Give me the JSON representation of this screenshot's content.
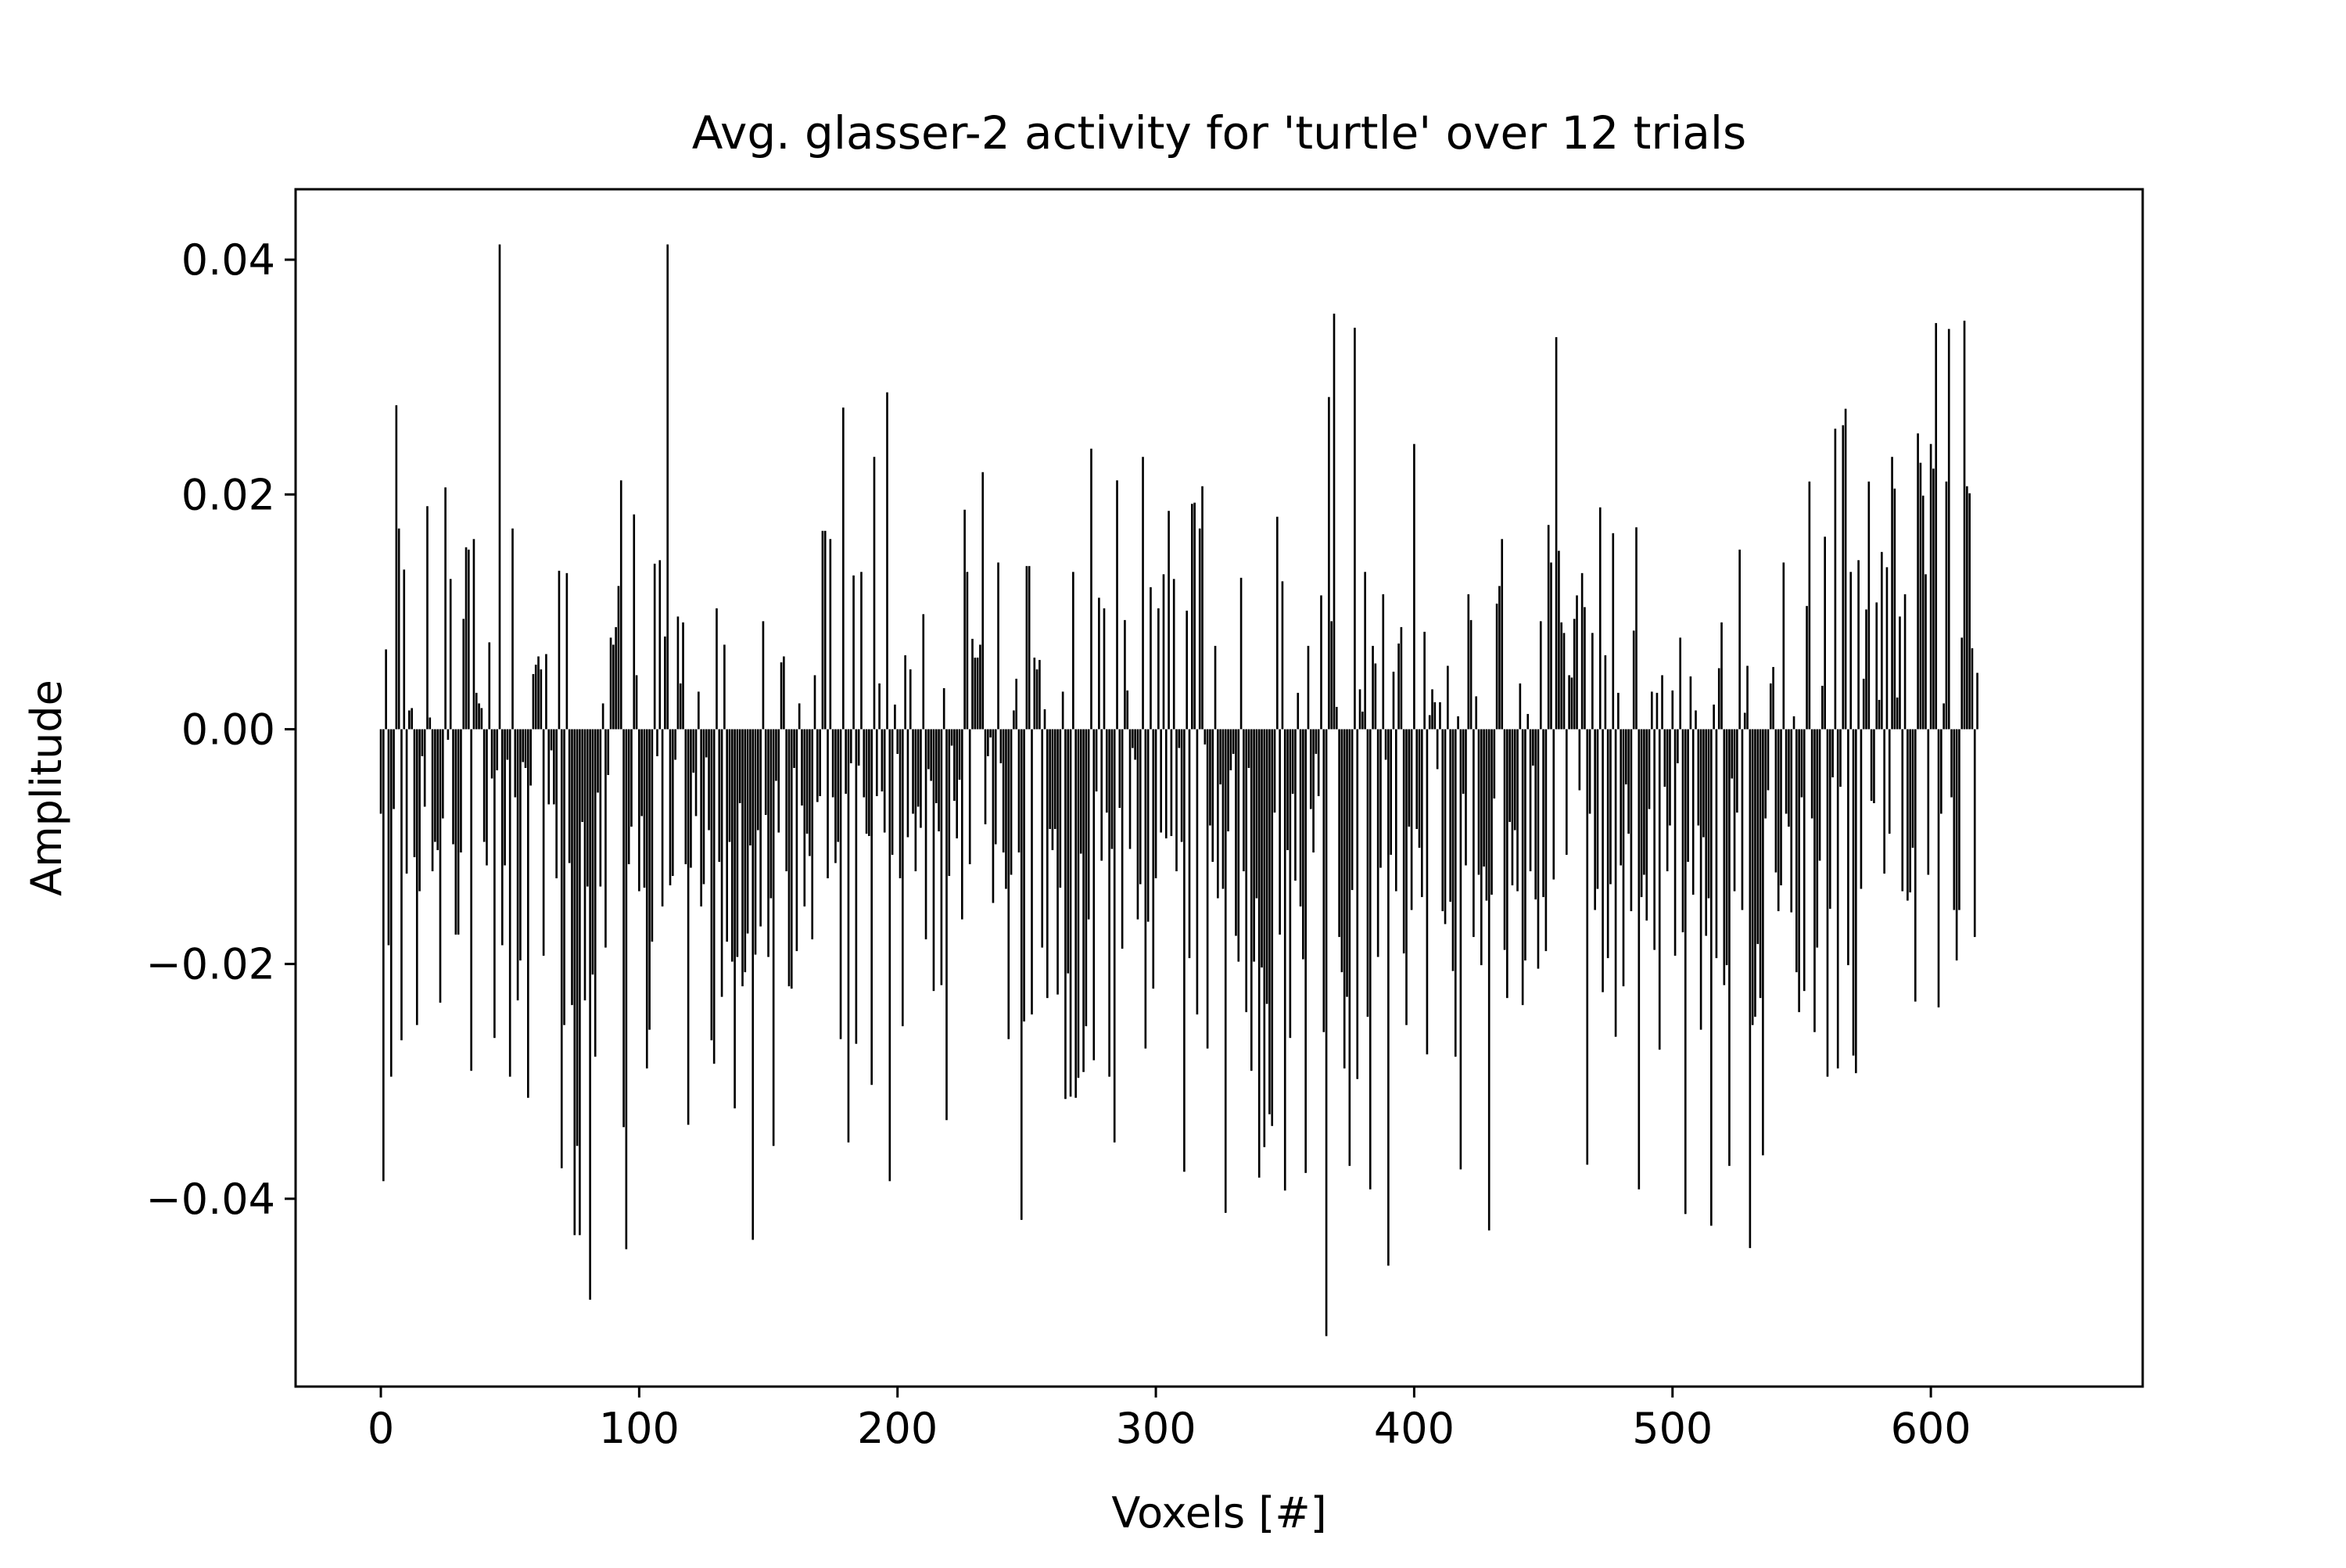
{
  "chart_data": {
    "type": "bar",
    "title": "Avg. glasser-2 activity for 'turtle' over 12 trials",
    "xlabel": "Voxels [#]",
    "ylabel": "Amplitude",
    "xlim": [
      -33,
      682
    ],
    "ylim": [
      -0.056,
      0.046
    ],
    "x_ticks": [
      0,
      100,
      200,
      300,
      400,
      500,
      600
    ],
    "x_tick_labels": [
      "0",
      "100",
      "200",
      "300",
      "400",
      "500",
      "600"
    ],
    "y_ticks": [
      0.04,
      0.02,
      0.0,
      -0.02,
      -0.04
    ],
    "y_tick_labels": [
      "0.04",
      "0.02",
      "0.00",
      "−0.02",
      "−0.04"
    ],
    "grid": false,
    "bar_color": "#000000",
    "n_bars": 650,
    "values": [
      -0.0072,
      -0.0385,
      0.0068,
      -0.0184,
      -0.0296,
      -0.0068,
      0.0276,
      0.0171,
      -0.0265,
      0.0136,
      -0.0123,
      0.0016,
      0.0018,
      -0.0109,
      -0.0252,
      -0.0138,
      -0.0023,
      -0.0066,
      0.019,
      0.001,
      -0.0121,
      -0.0096,
      -0.0103,
      -0.0233,
      -0.0076,
      0.0206,
      -0.0009,
      0.0128,
      -0.0098,
      -0.0175,
      -0.0175,
      -0.0105,
      0.0094,
      0.0155,
      0.0153,
      -0.0291,
      0.0162,
      0.0031,
      0.0022,
      0.0018,
      -0.0096,
      -0.0116,
      0.0074,
      -0.0042,
      -0.0263,
      -0.0035,
      0.0413,
      -0.0184,
      -0.0116,
      -0.0026,
      -0.0296,
      0.0171,
      -0.0058,
      -0.0231,
      -0.0197,
      -0.0028,
      -0.0033,
      -0.0314,
      -0.0048,
      0.0047,
      0.0055,
      0.0062,
      0.0051,
      -0.0193,
      0.0064,
      -0.0064,
      -0.0018,
      -0.0064,
      -0.0127,
      0.0135,
      -0.0374,
      -0.0252,
      0.0133,
      -0.0114,
      -0.0235,
      -0.0431,
      -0.0355,
      -0.0431,
      -0.0079,
      -0.0231,
      -0.0134,
      -0.0486,
      -0.0209,
      -0.0279,
      -0.0054,
      -0.0134,
      0.0022,
      -0.0186,
      -0.0039,
      0.0078,
      0.0072,
      0.0087,
      0.0122,
      0.0212,
      -0.0339,
      -0.0443,
      -0.0115,
      -0.0083,
      0.0183,
      0.0046,
      -0.0138,
      -0.0074,
      -0.0135,
      -0.0289,
      -0.0256,
      -0.0181,
      0.0141,
      -0.0023,
      0.0144,
      -0.0151,
      0.0079,
      0.0413,
      -0.0133,
      -0.0125,
      -0.0026,
      0.0096,
      0.0039,
      0.0091,
      -0.0115,
      -0.0337,
      -0.0118,
      -0.0037,
      -0.0074,
      0.0032,
      -0.0151,
      -0.0132,
      -0.0024,
      -0.0086,
      -0.0265,
      -0.0285,
      0.0103,
      -0.0113,
      -0.0228,
      0.0072,
      -0.0181,
      -0.0096,
      -0.0198,
      -0.0323,
      -0.0194,
      -0.0063,
      -0.0219,
      -0.0207,
      -0.0174,
      -0.0099,
      -0.0435,
      -0.0192,
      -0.0086,
      -0.0168,
      0.0092,
      -0.0073,
      -0.0194,
      -0.0144,
      -0.0355,
      -0.0044,
      -0.0088,
      0.0057,
      0.0062,
      -0.0121,
      -0.0219,
      -0.0221,
      -0.0033,
      -0.0189,
      0.0022,
      -0.0065,
      -0.0151,
      -0.0089,
      -0.0108,
      -0.0179,
      0.0046,
      -0.0062,
      -0.0057,
      0.0169,
      0.0169,
      -0.0127,
      0.0162,
      -0.0058,
      -0.0114,
      -0.0096,
      -0.0264,
      0.0274,
      -0.0055,
      -0.0352,
      -0.0029,
      0.0131,
      -0.0268,
      -0.0031,
      0.0134,
      -0.0058,
      -0.0089,
      -0.0091,
      -0.0303,
      0.0232,
      -0.0057,
      0.0039,
      -0.0053,
      -0.0088,
      0.0287,
      -0.0385,
      -0.0107,
      0.0021,
      -0.0021,
      -0.0127,
      -0.0253,
      0.0063,
      -0.0092,
      0.0051,
      -0.0072,
      -0.0121,
      -0.0066,
      -0.0084,
      0.0098,
      -0.0179,
      -0.0034,
      -0.0044,
      -0.0223,
      -0.0063,
      -0.0087,
      -0.0218,
      0.0035,
      -0.0333,
      -0.0125,
      -0.0014,
      -0.0061,
      -0.0093,
      -0.0043,
      -0.0162,
      0.0187,
      0.0134,
      -0.0115,
      0.0077,
      0.0061,
      0.0061,
      0.0072,
      0.0219,
      -0.0081,
      -0.0023,
      -0.0007,
      -0.0148,
      -0.0098,
      0.0142,
      -0.0029,
      -0.0105,
      -0.0136,
      -0.0264,
      -0.0124,
      0.0016,
      0.0043,
      -0.0105,
      -0.0418,
      -0.0249,
      0.0139,
      0.0139,
      -0.0243,
      0.0061,
      0.0051,
      0.0059,
      -0.0186,
      0.0017,
      -0.0229,
      -0.0085,
      -0.0103,
      -0.0085,
      -0.0226,
      -0.0135,
      0.0032,
      -0.0315,
      -0.0208,
      -0.0313,
      0.0134,
      -0.0314,
      -0.0297,
      -0.0106,
      -0.0292,
      -0.0253,
      -0.0162,
      0.0239,
      -0.0282,
      -0.0053,
      0.0112,
      -0.0112,
      0.0103,
      -0.0071,
      -0.0296,
      -0.0102,
      -0.0352,
      0.0212,
      -0.0067,
      -0.0187,
      0.0093,
      0.0033,
      -0.0102,
      -0.0016,
      -0.0026,
      -0.0162,
      -0.0132,
      0.0232,
      -0.0272,
      -0.0164,
      0.0121,
      -0.0221,
      -0.0127,
      0.0103,
      -0.0088,
      0.0132,
      -0.0093,
      0.0186,
      -0.0091,
      0.0128,
      -0.0121,
      -0.0016,
      -0.0096,
      -0.0377,
      0.0101,
      -0.0195,
      0.0192,
      0.0193,
      -0.0243,
      0.0171,
      0.0207,
      -0.0013,
      -0.0272,
      -0.0082,
      -0.0113,
      0.0071,
      -0.0144,
      -0.0047,
      -0.0136,
      -0.0412,
      -0.0087,
      -0.0035,
      -0.0021,
      -0.0176,
      -0.0198,
      0.0129,
      -0.0121,
      -0.0241,
      -0.0033,
      -0.0291,
      -0.0198,
      -0.0144,
      -0.0382,
      -0.0203,
      -0.0356,
      -0.0234,
      -0.0328,
      -0.0338,
      -0.0071,
      0.0181,
      -0.0175,
      0.0126,
      -0.0393,
      -0.0103,
      -0.0263,
      -0.0055,
      -0.0129,
      0.0031,
      -0.0151,
      -0.0196,
      -0.0378,
      0.0071,
      -0.0068,
      -0.0105,
      -0.0021,
      -0.0057,
      0.0114,
      -0.0258,
      -0.0517,
      0.0283,
      0.0092,
      0.0354,
      0.0019,
      -0.0177,
      -0.0207,
      -0.0289,
      -0.0228,
      -0.0372,
      -0.0137,
      0.0342,
      -0.0298,
      0.0034,
      0.0015,
      0.0134,
      -0.0245,
      -0.0392,
      0.0071,
      0.0056,
      -0.0194,
      -0.0118,
      0.0115,
      -0.0026,
      -0.0457,
      -0.0107,
      0.0049,
      -0.0138,
      0.0073,
      0.0087,
      -0.0191,
      -0.0252,
      -0.0083,
      -0.0154,
      0.0243,
      -0.0085,
      -0.0101,
      -0.0143,
      0.0083,
      -0.0277,
      0.0012,
      0.0034,
      0.0023,
      -0.0034,
      0.0023,
      -0.0155,
      -0.0166,
      0.0054,
      -0.0147,
      -0.0206,
      -0.0279,
      0.0011,
      -0.0375,
      -0.0055,
      -0.0116,
      0.0115,
      0.0093,
      -0.0177,
      0.0028,
      -0.0124,
      -0.0201,
      -0.0117,
      -0.0146,
      -0.0427,
      -0.0141,
      -0.0059,
      0.0107,
      0.0122,
      0.0162,
      -0.0188,
      -0.0229,
      -0.0079,
      -0.0133,
      -0.0086,
      -0.0138,
      0.0039,
      -0.0235,
      -0.0197,
      0.0013,
      -0.0121,
      -0.0031,
      -0.0145,
      -0.0204,
      0.0092,
      -0.0143,
      -0.0189,
      0.0174,
      0.0142,
      -0.0128,
      0.0334,
      0.0152,
      0.0091,
      0.0082,
      -0.0107,
      0.0046,
      0.0044,
      0.0094,
      0.0114,
      -0.0052,
      0.0133,
      0.0104,
      -0.0371,
      -0.0072,
      0.0082,
      -0.0154,
      -0.0136,
      0.0189,
      -0.0224,
      0.0063,
      -0.0195,
      -0.0132,
      0.0167,
      -0.0262,
      0.0031,
      -0.0116,
      -0.0219,
      -0.0047,
      -0.0089,
      -0.0155,
      0.0084,
      0.0172,
      -0.0392,
      -0.0143,
      -0.0124,
      -0.0163,
      -0.0068,
      0.0032,
      -0.0188,
      0.0031,
      -0.0273,
      0.0046,
      -0.0049,
      -0.0121,
      -0.0082,
      0.0033,
      -0.0193,
      -0.0029,
      0.0078,
      -0.0173,
      -0.0413,
      -0.0113,
      0.0045,
      -0.0141,
      0.0016,
      -0.0082,
      -0.0256,
      -0.0092,
      -0.0176,
      -0.0144,
      -0.0423,
      0.0021,
      -0.0195,
      0.0052,
      0.0091,
      -0.0218,
      -0.0201,
      -0.0372,
      -0.0042,
      -0.0138,
      -0.0071,
      0.0153,
      -0.0154,
      0.0014,
      0.0054,
      -0.0442,
      -0.0252,
      -0.0245,
      -0.0183,
      -0.0229,
      -0.0363,
      -0.0076,
      -0.0052,
      0.0039,
      0.0053,
      -0.0122,
      -0.0155,
      -0.0133,
      0.0142,
      -0.0072,
      -0.0083,
      -0.0156,
      0.0011,
      -0.0207,
      -0.0241,
      -0.0058,
      -0.0223,
      0.0105,
      0.0211,
      -0.0076,
      -0.0258,
      -0.0186,
      -0.0112,
      0.0037,
      0.0164,
      -0.0296,
      -0.0153,
      -0.0041,
      0.0256,
      -0.0289,
      -0.0049,
      0.0259,
      0.0273,
      -0.0201,
      0.0134,
      -0.0278,
      -0.0293,
      0.0144,
      -0.0136,
      0.0043,
      0.0102,
      0.0211,
      -0.0061,
      -0.0063,
      0.0108,
      0.0025,
      0.0151,
      -0.0123,
      0.0138,
      -0.0089,
      0.0232,
      0.0205,
      0.0027,
      0.0096,
      -0.0138,
      0.0115,
      -0.0146,
      -0.0139,
      -0.0101,
      -0.0232,
      0.0252,
      0.0227,
      0.0199,
      0.0132,
      -0.0124,
      0.0243,
      0.0222,
      0.0346,
      -0.0237,
      -0.0072,
      0.0022,
      0.0211,
      0.0341,
      -0.0058,
      -0.0154,
      -0.0197,
      -0.0154,
      0.0078,
      0.0348,
      0.0207,
      0.0201,
      0.0069,
      -0.0177,
      0.0048
    ]
  }
}
